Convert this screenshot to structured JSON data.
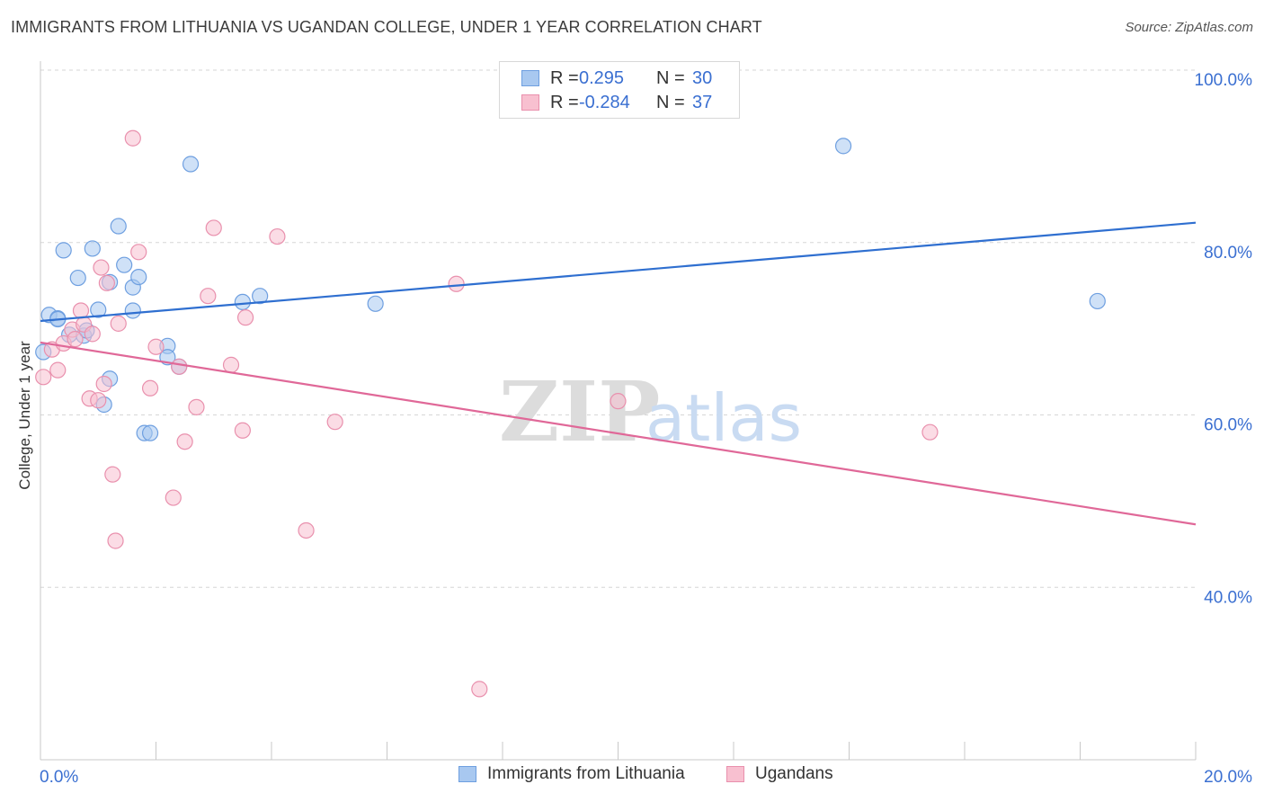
{
  "title": "IMMIGRANTS FROM LITHUANIA VS UGANDAN COLLEGE, UNDER 1 YEAR CORRELATION CHART",
  "source": "Source: ZipAtlas.com",
  "watermark": {
    "zip": "ZIP",
    "atlas": "atlas"
  },
  "legend_stats": [
    {
      "r_label": "R =",
      "r_value": "0.295",
      "n_label": "N =",
      "n_value": "30",
      "color": "#a8c8f0",
      "border": "#6e9fe0"
    },
    {
      "r_label": "R =",
      "r_value": "-0.284",
      "n_label": "N =",
      "n_value": "37",
      "color": "#f8c0d0",
      "border": "#e990ad"
    }
  ],
  "bottom_legend": [
    {
      "label": "Immigrants from Lithuania",
      "color": "#a8c8f0",
      "border": "#6e9fe0"
    },
    {
      "label": "Ugandans",
      "color": "#f8c0d0",
      "border": "#e990ad"
    }
  ],
  "chart_data": {
    "type": "scatter",
    "title": "IMMIGRANTS FROM LITHUANIA VS UGANDAN COLLEGE, UNDER 1 YEAR CORRELATION CHART",
    "xlabel": "",
    "ylabel": "College, Under 1 year",
    "xlim": [
      0,
      20
    ],
    "ylim": [
      20,
      100
    ],
    "x_tick_labels": [
      "0.0%",
      "20.0%"
    ],
    "y_ticks": [
      40,
      60,
      80,
      100
    ],
    "y_tick_labels": [
      "40.0%",
      "60.0%",
      "80.0%",
      "100.0%"
    ],
    "grid": true,
    "legend_position": "top-center",
    "series": [
      {
        "name": "Immigrants from Lithuania",
        "color": "#a8c8f0",
        "stroke": "#6e9fe0",
        "line_color": "#2f6fd0",
        "trend": [
          [
            0,
            70.9
          ],
          [
            20,
            82.3
          ]
        ],
        "points": [
          [
            0.05,
            67.3
          ],
          [
            0.15,
            71.6
          ],
          [
            0.3,
            71.2
          ],
          [
            0.4,
            79.1
          ],
          [
            0.5,
            69.3
          ],
          [
            0.65,
            75.9
          ],
          [
            0.75,
            69.2
          ],
          [
            0.8,
            69.8
          ],
          [
            0.9,
            79.3
          ],
          [
            1.0,
            72.2
          ],
          [
            1.1,
            61.2
          ],
          [
            1.2,
            64.2
          ],
          [
            1.35,
            81.9
          ],
          [
            1.45,
            77.4
          ],
          [
            1.6,
            72.1
          ],
          [
            1.6,
            74.8
          ],
          [
            1.7,
            76.0
          ],
          [
            1.8,
            57.9
          ],
          [
            1.9,
            57.9
          ],
          [
            2.2,
            68.0
          ],
          [
            2.2,
            66.7
          ],
          [
            2.4,
            65.6
          ],
          [
            2.6,
            89.1
          ],
          [
            3.5,
            73.1
          ],
          [
            3.8,
            73.8
          ],
          [
            5.8,
            72.9
          ],
          [
            1.2,
            75.4
          ],
          [
            0.3,
            71.1
          ],
          [
            13.9,
            91.2
          ],
          [
            18.3,
            73.2
          ]
        ]
      },
      {
        "name": "Ugandans",
        "color": "#f8c0d0",
        "stroke": "#e990ad",
        "line_color": "#e06898",
        "trend": [
          [
            0,
            68.4
          ],
          [
            20,
            47.3
          ]
        ],
        "points": [
          [
            0.05,
            64.4
          ],
          [
            0.2,
            67.6
          ],
          [
            0.3,
            65.2
          ],
          [
            0.4,
            68.3
          ],
          [
            0.55,
            69.9
          ],
          [
            0.6,
            68.8
          ],
          [
            0.7,
            72.1
          ],
          [
            0.75,
            70.5
          ],
          [
            0.85,
            61.9
          ],
          [
            0.9,
            69.4
          ],
          [
            1.0,
            61.7
          ],
          [
            1.05,
            77.1
          ],
          [
            1.1,
            63.6
          ],
          [
            1.15,
            75.3
          ],
          [
            1.25,
            53.1
          ],
          [
            1.3,
            45.4
          ],
          [
            1.35,
            70.6
          ],
          [
            1.6,
            92.1
          ],
          [
            1.7,
            78.9
          ],
          [
            2.0,
            67.9
          ],
          [
            2.3,
            50.4
          ],
          [
            2.4,
            65.6
          ],
          [
            2.5,
            56.9
          ],
          [
            2.7,
            60.9
          ],
          [
            2.9,
            73.8
          ],
          [
            3.0,
            81.7
          ],
          [
            3.3,
            65.8
          ],
          [
            3.5,
            58.2
          ],
          [
            3.55,
            71.3
          ],
          [
            4.1,
            80.7
          ],
          [
            4.6,
            46.6
          ],
          [
            5.1,
            59.2
          ],
          [
            7.2,
            75.2
          ],
          [
            7.6,
            28.2
          ],
          [
            10.0,
            61.6
          ],
          [
            15.4,
            58.0
          ],
          [
            1.9,
            63.1
          ]
        ]
      }
    ]
  }
}
